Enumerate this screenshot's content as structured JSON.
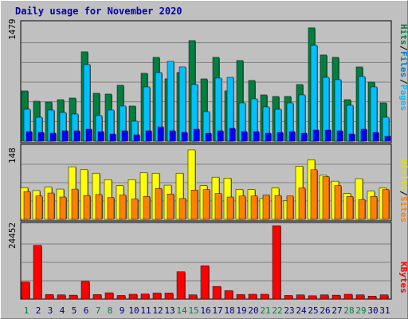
{
  "title": "Daily usage for November 2020",
  "colors": {
    "hits": "#008040",
    "files": "#00c0ff",
    "pages": "#0000ff",
    "visits": "#ffff00",
    "sites": "#ff8000",
    "kbytes": "#ff0000",
    "weekend_label": "#008040",
    "weekday_label": "#000080"
  },
  "chart_data": [
    {
      "type": "bar",
      "ylim": [
        0,
        1479
      ],
      "ymax_label": "1479",
      "legend_labels": {
        "pages": "Pages",
        "files": "Files",
        "hits": "Hits"
      },
      "series": [
        {
          "name": "Hits",
          "values": [
            630,
            500,
            490,
            520,
            540,
            1120,
            600,
            590,
            700,
            440,
            850,
            1050,
            780,
            860,
            1260,
            780,
            1050,
            630,
            1010,
            760,
            580,
            560,
            560,
            710,
            1420,
            1080,
            1050,
            520,
            930,
            740,
            480
          ]
        },
        {
          "name": "Files",
          "values": [
            400,
            300,
            390,
            360,
            340,
            960,
            320,
            390,
            440,
            250,
            680,
            860,
            1000,
            930,
            710,
            370,
            790,
            800,
            480,
            530,
            430,
            400,
            480,
            580,
            1200,
            800,
            770,
            450,
            810,
            680,
            300
          ]
        },
        {
          "name": "Pages",
          "values": [
            120,
            110,
            100,
            130,
            130,
            150,
            120,
            90,
            130,
            80,
            130,
            180,
            130,
            110,
            150,
            100,
            130,
            160,
            120,
            120,
            100,
            110,
            120,
            100,
            140,
            140,
            130,
            90,
            150,
            110,
            60
          ]
        }
      ]
    },
    {
      "type": "bar",
      "ylim": [
        0,
        148
      ],
      "ymax_label": "148",
      "legend_labels": {
        "sites": "Sites",
        "visits": "Visits"
      },
      "series": [
        {
          "name": "Visits",
          "values": [
            64,
            58,
            65,
            61,
            106,
            100,
            93,
            80,
            68,
            80,
            94,
            93,
            69,
            93,
            140,
            68,
            85,
            83,
            60,
            60,
            42,
            63,
            38,
            107,
            120,
            89,
            77,
            52,
            82,
            57,
            63
          ]
        },
        {
          "name": "Sites",
          "values": [
            56,
            47,
            53,
            45,
            61,
            48,
            50,
            44,
            49,
            41,
            46,
            62,
            51,
            42,
            59,
            60,
            52,
            45,
            47,
            47,
            49,
            48,
            47,
            63,
            100,
            86,
            68,
            46,
            40,
            46,
            60
          ]
        }
      ]
    },
    {
      "type": "bar",
      "ylim": [
        0,
        24452
      ],
      "ymax_label": "24452",
      "legend_labels": {
        "kbytes": "KBytes"
      },
      "series": [
        {
          "name": "KBytes",
          "values": [
            5700,
            17900,
            1500,
            1400,
            1300,
            5900,
            1500,
            2100,
            1200,
            1600,
            1700,
            2000,
            2000,
            9100,
            1400,
            11100,
            4200,
            2800,
            1500,
            1600,
            1600,
            24452,
            1200,
            1400,
            1100,
            1400,
            1300,
            1600,
            1400,
            1000,
            1400
          ]
        }
      ]
    }
  ],
  "x_labels": [
    "1",
    "2",
    "3",
    "4",
    "5",
    "6",
    "7",
    "8",
    "9",
    "10",
    "11",
    "12",
    "13",
    "14",
    "15",
    "16",
    "17",
    "18",
    "19",
    "20",
    "21",
    "22",
    "23",
    "24",
    "25",
    "26",
    "27",
    "28",
    "29",
    "30",
    "31"
  ],
  "weekend_days": [
    1,
    7,
    8,
    14,
    15,
    21,
    22,
    28,
    29
  ]
}
